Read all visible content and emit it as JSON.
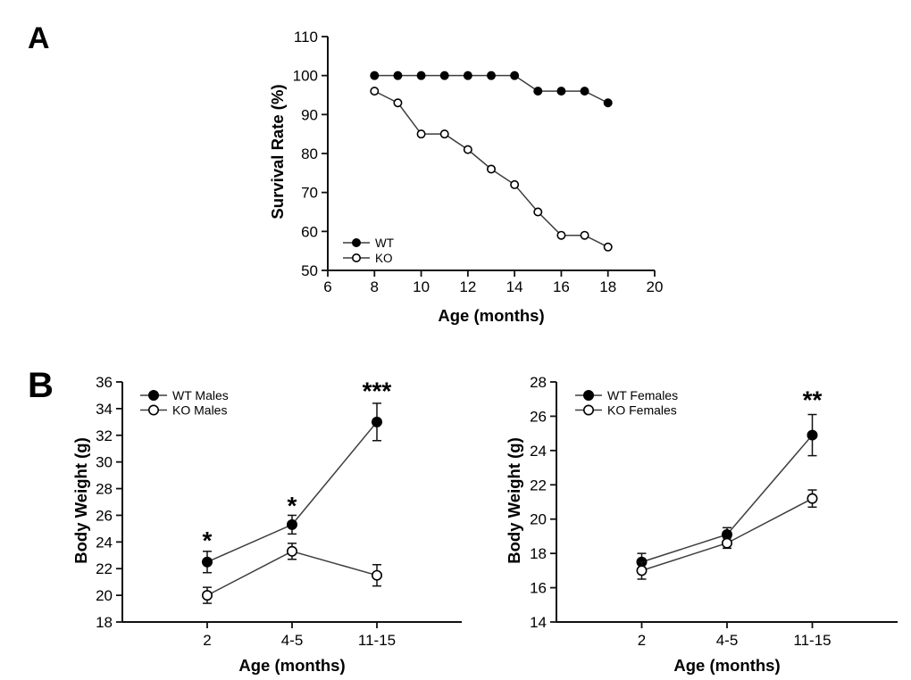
{
  "panels": {
    "a": {
      "label": "A"
    },
    "b": {
      "label": "B"
    }
  },
  "chart_data": [
    {
      "id": "survival",
      "type": "line",
      "title": "",
      "xlabel": "Age (months)",
      "ylabel": "Survival Rate (%)",
      "x_mode": "linear",
      "xlim": [
        6,
        20
      ],
      "x_ticks": [
        6,
        8,
        10,
        12,
        14,
        16,
        18,
        20
      ],
      "ylim": [
        50,
        110
      ],
      "y_ticks": [
        50,
        60,
        70,
        80,
        90,
        100,
        110
      ],
      "grid": false,
      "legend_position": "lower-left-inside",
      "series": [
        {
          "name": "WT",
          "marker": "filled",
          "x": [
            8,
            9,
            10,
            11,
            12,
            13,
            14,
            15,
            16,
            17,
            18
          ],
          "y": [
            100,
            100,
            100,
            100,
            100,
            100,
            100,
            96,
            96,
            96,
            93
          ]
        },
        {
          "name": "KO",
          "marker": "open",
          "x": [
            8,
            9,
            10,
            11,
            12,
            13,
            14,
            15,
            16,
            17,
            18
          ],
          "y": [
            96,
            93,
            85,
            85,
            81,
            76,
            72,
            65,
            59,
            59,
            56
          ]
        }
      ],
      "annotations": []
    },
    {
      "id": "males",
      "type": "line",
      "title": "",
      "xlabel": "Age (months)",
      "ylabel": "Body Weight (g)",
      "x_mode": "categorical",
      "categories": [
        "2",
        "4-5",
        "11-15"
      ],
      "ylim": [
        18,
        36
      ],
      "y_ticks": [
        18,
        20,
        22,
        24,
        26,
        28,
        30,
        32,
        34,
        36
      ],
      "grid": false,
      "legend_position": "upper-left-inside",
      "series": [
        {
          "name": "WT Males",
          "marker": "filled",
          "y": [
            22.5,
            25.3,
            33.0
          ],
          "err": [
            0.8,
            0.7,
            1.4
          ]
        },
        {
          "name": "KO Males",
          "marker": "open",
          "y": [
            20.0,
            23.3,
            21.5
          ],
          "err": [
            0.6,
            0.6,
            0.8
          ]
        }
      ],
      "annotations": [
        {
          "text": "*",
          "cat": 0,
          "y": 24.3
        },
        {
          "text": "*",
          "cat": 1,
          "y": 26.9
        },
        {
          "text": "***",
          "cat": 2,
          "y": 35.5
        }
      ]
    },
    {
      "id": "females",
      "type": "line",
      "title": "",
      "xlabel": "Age (months)",
      "ylabel": "Body Weight (g)",
      "x_mode": "categorical",
      "categories": [
        "2",
        "4-5",
        "11-15"
      ],
      "ylim": [
        14,
        28
      ],
      "y_ticks": [
        14,
        16,
        18,
        20,
        22,
        24,
        26,
        28
      ],
      "grid": false,
      "legend_position": "upper-left-inside",
      "series": [
        {
          "name": "WT Females",
          "marker": "filled",
          "y": [
            17.5,
            19.1,
            24.9
          ],
          "err": [
            0.5,
            0.4,
            1.2
          ]
        },
        {
          "name": "KO Females",
          "marker": "open",
          "y": [
            17.0,
            18.6,
            21.2
          ],
          "err": [
            0.5,
            0.3,
            0.5
          ]
        }
      ],
      "annotations": [
        {
          "text": "**",
          "cat": 2,
          "y": 27.1
        }
      ]
    }
  ],
  "colors": {
    "marker_fill": "#000000",
    "marker_open_fill": "#ffffff",
    "line": "#3d3d3d",
    "axis": "#111111",
    "text": "#000000"
  }
}
